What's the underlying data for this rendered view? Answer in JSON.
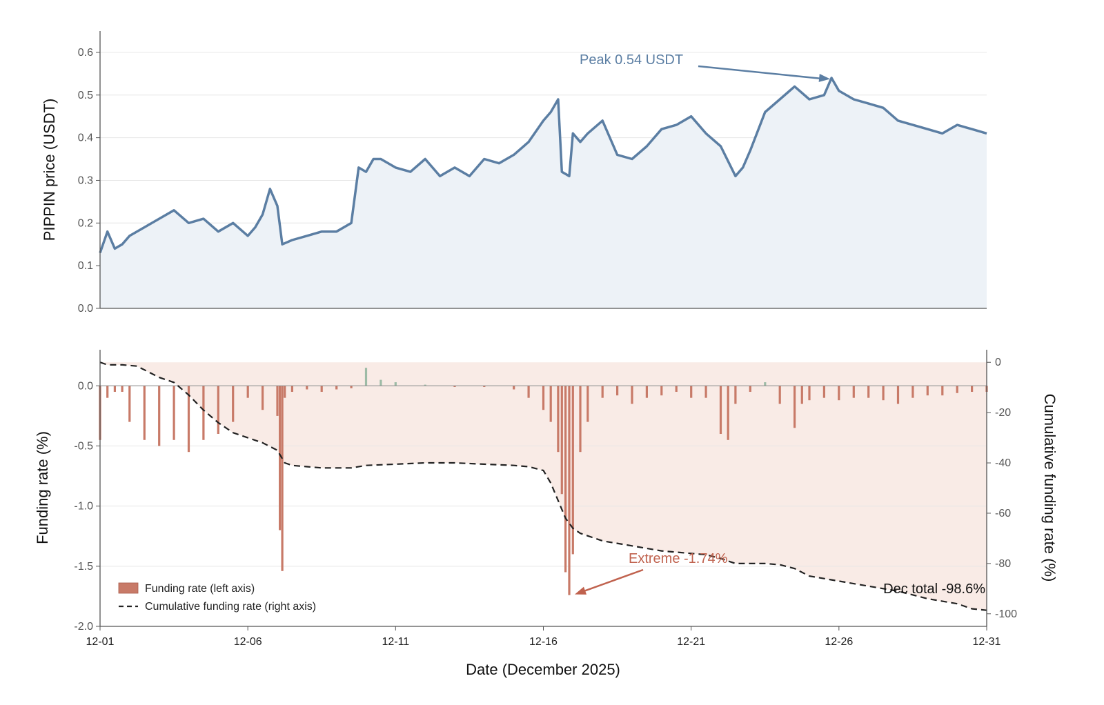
{
  "colors": {
    "price_line": "#5b7ea3",
    "price_fill": "#edf2f7",
    "funding_negative": "#c87a68",
    "funding_positive": "#9dbba6",
    "cumulative_fill": "#f9ebe6",
    "cumulative_line": "#222222",
    "grid": "#e6e6e6",
    "axis": "#555555",
    "peak_annotation": "#5b7ea3",
    "extreme_annotation": "#c0624e"
  },
  "chart_data": [
    {
      "type": "area",
      "ylabel": "PIPPIN price (USDT)",
      "ylim": [
        0.0,
        0.65
      ],
      "yticks": [
        "0.0",
        "0.1",
        "0.2",
        "0.3",
        "0.4",
        "0.5",
        "0.6"
      ],
      "xlim": [
        "2025-12-01",
        "2025-12-31"
      ],
      "grid": true,
      "series": [
        {
          "x": [
            "12-01 00:00",
            "12-01 06:00",
            "12-01 12:00",
            "12-01 18:00",
            "12-02 00:00",
            "12-02 12:00",
            "12-03 00:00",
            "12-03 12:00",
            "12-04 00:00",
            "12-04 12:00",
            "12-05 00:00",
            "12-05 12:00",
            "12-06 00:00",
            "12-06 06:00",
            "12-06 12:00",
            "12-06 18:00",
            "12-07 00:00",
            "12-07 04:00",
            "12-07 12:00",
            "12-08 00:00",
            "12-08 12:00",
            "12-09 00:00",
            "12-09 12:00",
            "12-09 18:00",
            "12-10 00:00",
            "12-10 06:00",
            "12-10 12:00",
            "12-11 00:00",
            "12-11 12:00",
            "12-12 00:00",
            "12-12 12:00",
            "12-13 00:00",
            "12-13 12:00",
            "12-14 00:00",
            "12-14 12:00",
            "12-15 00:00",
            "12-15 12:00",
            "12-16 00:00",
            "12-16 06:00",
            "12-16 12:00",
            "12-16 15:00",
            "12-16 21:00",
            "12-17 00:00",
            "12-17 06:00",
            "12-17 12:00",
            "12-18 00:00",
            "12-18 12:00",
            "12-19 00:00",
            "12-19 12:00",
            "12-20 00:00",
            "12-20 12:00",
            "12-21 00:00",
            "12-21 12:00",
            "12-22 00:00",
            "12-22 12:00",
            "12-22 18:00",
            "12-23 00:00",
            "12-23 12:00",
            "12-24 00:00",
            "12-24 12:00",
            "12-25 00:00",
            "12-25 12:00",
            "12-25 18:00",
            "12-26 00:00",
            "12-26 12:00",
            "12-27 00:00",
            "12-27 12:00",
            "12-28 00:00",
            "12-28 12:00",
            "12-29 00:00",
            "12-29 12:00",
            "12-30 00:00",
            "12-30 12:00",
            "12-31 00:00"
          ],
          "values": [
            0.13,
            0.18,
            0.14,
            0.15,
            0.17,
            0.19,
            0.21,
            0.23,
            0.2,
            0.21,
            0.18,
            0.2,
            0.17,
            0.19,
            0.22,
            0.28,
            0.24,
            0.15,
            0.16,
            0.17,
            0.18,
            0.18,
            0.2,
            0.33,
            0.32,
            0.35,
            0.35,
            0.33,
            0.32,
            0.35,
            0.31,
            0.33,
            0.31,
            0.35,
            0.34,
            0.36,
            0.39,
            0.44,
            0.46,
            0.49,
            0.32,
            0.31,
            0.41,
            0.39,
            0.41,
            0.44,
            0.36,
            0.35,
            0.38,
            0.42,
            0.43,
            0.45,
            0.41,
            0.38,
            0.31,
            0.33,
            0.37,
            0.46,
            0.49,
            0.52,
            0.49,
            0.5,
            0.54,
            0.51,
            0.49,
            0.48,
            0.47,
            0.44,
            0.43,
            0.42,
            0.41,
            0.43,
            0.42,
            0.41
          ]
        }
      ],
      "annotations": [
        {
          "text": "Peak 0.54 USDT",
          "x": "12-25 18:00",
          "y": 0.54
        }
      ]
    },
    {
      "type": "bar",
      "xlabel": "Date (December 2025)",
      "ylabel": "Funding rate (%)",
      "y2label": "Cumulative funding rate (%)",
      "ylim": [
        -2.0,
        0.3
      ],
      "y2lim": [
        -105,
        5
      ],
      "yticks": [
        "-2.0",
        "-1.5",
        "-1.0",
        "-0.5",
        "0.0"
      ],
      "y2ticks": [
        "-100",
        "-80",
        "-60",
        "-40",
        "-20",
        "0"
      ],
      "xlim": [
        "2025-12-01",
        "2025-12-31"
      ],
      "xticks": [
        "12-01",
        "12-06",
        "12-11",
        "12-16",
        "12-21",
        "12-26",
        "12-31"
      ],
      "grid": true,
      "legend_position": "bottom-left",
      "series": [
        {
          "name": "Funding rate (left axis)",
          "x": [
            "12-01 00:00",
            "12-01 06:00",
            "12-01 12:00",
            "12-01 18:00",
            "12-02 00:00",
            "12-02 12:00",
            "12-03 00:00",
            "12-03 12:00",
            "12-04 00:00",
            "12-04 12:00",
            "12-05 00:00",
            "12-05 12:00",
            "12-06 00:00",
            "12-06 12:00",
            "12-07 00:00",
            "12-07 02:00",
            "12-07 04:00",
            "12-07 06:00",
            "12-07 12:00",
            "12-08 00:00",
            "12-08 12:00",
            "12-09 00:00",
            "12-09 12:00",
            "12-10 00:00",
            "12-10 12:00",
            "12-11 00:00",
            "12-12 00:00",
            "12-13 00:00",
            "12-14 00:00",
            "12-15 00:00",
            "12-15 12:00",
            "12-16 00:00",
            "12-16 06:00",
            "12-16 12:00",
            "12-16 15:00",
            "12-16 18:00",
            "12-16 21:00",
            "12-17 00:00",
            "12-17 06:00",
            "12-17 12:00",
            "12-18 00:00",
            "12-18 12:00",
            "12-19 00:00",
            "12-19 12:00",
            "12-20 00:00",
            "12-20 12:00",
            "12-21 00:00",
            "12-21 12:00",
            "12-22 00:00",
            "12-22 06:00",
            "12-22 12:00",
            "12-23 00:00",
            "12-23 12:00",
            "12-24 00:00",
            "12-24 12:00",
            "12-24 18:00",
            "12-25 00:00",
            "12-25 12:00",
            "12-26 00:00",
            "12-26 12:00",
            "12-27 00:00",
            "12-27 12:00",
            "12-28 00:00",
            "12-28 12:00",
            "12-29 00:00",
            "12-29 12:00",
            "12-30 00:00",
            "12-30 12:00",
            "12-31 00:00"
          ],
          "values": [
            -0.45,
            -0.1,
            -0.05,
            -0.05,
            -0.3,
            -0.45,
            -0.5,
            -0.45,
            -0.55,
            -0.45,
            -0.4,
            -0.3,
            -0.1,
            -0.2,
            -0.25,
            -1.2,
            -1.54,
            -0.1,
            -0.05,
            -0.03,
            -0.05,
            -0.03,
            -0.02,
            0.15,
            0.05,
            0.03,
            0.01,
            -0.01,
            -0.01,
            -0.03,
            -0.1,
            -0.2,
            -0.3,
            -0.55,
            -0.9,
            -1.55,
            -1.74,
            -1.4,
            -0.55,
            -0.3,
            -0.1,
            -0.08,
            -0.15,
            -0.1,
            -0.08,
            -0.05,
            -0.1,
            -0.1,
            -0.4,
            -0.45,
            -0.15,
            -0.05,
            0.03,
            -0.15,
            -0.35,
            -0.15,
            -0.12,
            -0.1,
            -0.12,
            -0.1,
            -0.1,
            -0.12,
            -0.15,
            -0.1,
            -0.08,
            -0.08,
            -0.06,
            -0.05,
            -0.05
          ]
        },
        {
          "name": "Cumulative funding rate (right axis)",
          "x": [
            "12-01 00:00",
            "12-01 06:00",
            "12-01 18:00",
            "12-02 06:00",
            "12-02 12:00",
            "12-03 00:00",
            "12-03 12:00",
            "12-04 00:00",
            "12-04 12:00",
            "12-05 00:00",
            "12-05 12:00",
            "12-06 00:00",
            "12-06 12:00",
            "12-07 00:00",
            "12-07 06:00",
            "12-07 12:00",
            "12-08 00:00",
            "12-08 12:00",
            "12-09 00:00",
            "12-09 12:00",
            "12-10 00:00",
            "12-11 00:00",
            "12-12 00:00",
            "12-13 00:00",
            "12-14 00:00",
            "12-15 00:00",
            "12-15 12:00",
            "12-16 00:00",
            "12-16 06:00",
            "12-16 12:00",
            "12-16 18:00",
            "12-17 00:00",
            "12-17 06:00",
            "12-17 12:00",
            "12-18 00:00",
            "12-19 00:00",
            "12-20 00:00",
            "12-21 00:00",
            "12-21 12:00",
            "12-22 00:00",
            "12-22 12:00",
            "12-23 00:00",
            "12-23 12:00",
            "12-24 00:00",
            "12-24 12:00",
            "12-25 00:00",
            "12-26 00:00",
            "12-27 00:00",
            "12-28 00:00",
            "12-29 00:00",
            "12-30 00:00",
            "12-30 12:00",
            "12-31 00:00"
          ],
          "values": [
            0,
            -1,
            -1,
            -1.5,
            -3,
            -6,
            -8,
            -13,
            -19,
            -24,
            -28,
            -30,
            -32,
            -35,
            -40,
            -41,
            -41.5,
            -42,
            -42,
            -42,
            -41,
            -40.5,
            -40,
            -40,
            -40.5,
            -41,
            -41.5,
            -43,
            -48,
            -55,
            -62,
            -66,
            -68,
            -69,
            -71,
            -73,
            -75,
            -76,
            -76.5,
            -78,
            -80,
            -80,
            -80,
            -80.5,
            -82,
            -85,
            -87,
            -89,
            -91,
            -94,
            -96,
            -98,
            -98.6
          ]
        }
      ],
      "annotations": [
        {
          "text": "Extreme -1.74%",
          "x": "12-16 21:00",
          "y": -1.74
        },
        {
          "text": "Dec total -98.6%",
          "x": "12-31 00:00",
          "y": -98.6
        }
      ]
    }
  ]
}
